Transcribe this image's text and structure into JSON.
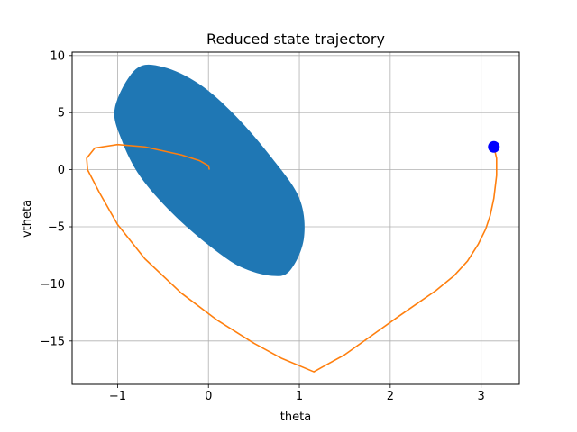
{
  "chart_data": {
    "type": "line",
    "title": "Reduced state trajectory",
    "xlabel": "theta",
    "ylabel": "vtheta",
    "xlim": [
      -1.5,
      3.42
    ],
    "ylim": [
      -18.8,
      10.3
    ],
    "xticks": [
      -1,
      0,
      1,
      2,
      3
    ],
    "xtick_labels": [
      "−1",
      "0",
      "1",
      "2",
      "3"
    ],
    "yticks": [
      10,
      5,
      0,
      -5,
      -10,
      -15
    ],
    "ytick_labels": [
      "10",
      "5",
      "0",
      "−5",
      "−10",
      "−15"
    ],
    "grid": true,
    "region": {
      "shape": "ellipse",
      "color": "#1f77b4",
      "outline": [
        [
          -1.03,
          5.4
        ],
        [
          -0.8,
          8.8
        ],
        [
          -0.5,
          9.0
        ],
        [
          -0.1,
          7.5
        ],
        [
          0.3,
          4.7
        ],
        [
          0.7,
          1.0
        ],
        [
          1.0,
          -2.5
        ],
        [
          1.05,
          -6.0
        ],
        [
          0.9,
          -8.8
        ],
        [
          0.7,
          -9.3
        ],
        [
          0.35,
          -8.5
        ],
        [
          0.0,
          -6.6
        ],
        [
          -0.4,
          -3.8
        ],
        [
          -0.75,
          -0.6
        ],
        [
          -0.95,
          2.5
        ]
      ]
    },
    "series": [
      {
        "color": "#ff7f0e",
        "x": [
          3.14,
          3.17,
          3.17,
          3.14,
          3.1,
          3.05,
          2.97,
          2.85,
          2.7,
          2.5,
          2.3,
          2.1,
          1.8,
          1.5,
          1.25,
          1.16,
          0.8,
          0.5,
          0.1,
          -0.3,
          -0.7,
          -1.0,
          -1.2,
          -1.33,
          -1.34,
          -1.25,
          -1.0,
          -0.7,
          -0.3,
          -0.1,
          0.0,
          0.01
        ],
        "y": [
          2.0,
          1.0,
          -0.5,
          -2.5,
          -4.0,
          -5.2,
          -6.5,
          -8.0,
          -9.3,
          -10.6,
          -11.7,
          -12.8,
          -14.5,
          -16.2,
          -17.3,
          -17.7,
          -16.5,
          -15.2,
          -13.2,
          -10.8,
          -7.8,
          -4.8,
          -2.0,
          0.0,
          1.0,
          1.9,
          2.2,
          2.0,
          1.3,
          0.8,
          0.35,
          0.0
        ]
      }
    ],
    "markers": [
      {
        "x": 3.14,
        "y": 2.0,
        "color": "#0000ff"
      }
    ]
  }
}
